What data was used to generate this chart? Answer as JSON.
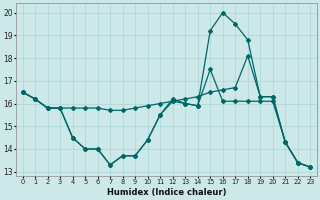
{
  "xlabel": "Humidex (Indice chaleur)",
  "background_color": "#cce8e8",
  "line_color": "#006666",
  "grid_color": "#aad4d4",
  "xlim": [
    -0.5,
    23.5
  ],
  "ylim": [
    12.8,
    20.4
  ],
  "yticks": [
    13,
    14,
    15,
    16,
    17,
    18,
    19,
    20
  ],
  "xticks": [
    0,
    1,
    2,
    3,
    4,
    5,
    6,
    7,
    8,
    9,
    10,
    11,
    12,
    13,
    14,
    15,
    16,
    17,
    18,
    19,
    20,
    21,
    22,
    23
  ],
  "series1_x": [
    0,
    1,
    2,
    3,
    4,
    5,
    6,
    7,
    8,
    9,
    10,
    11,
    12,
    13,
    14,
    15,
    16,
    17,
    18,
    19,
    20,
    21,
    22,
    23
  ],
  "series1_y": [
    16.5,
    16.2,
    15.8,
    15.8,
    14.5,
    14.0,
    14.0,
    13.3,
    13.7,
    13.7,
    14.4,
    15.5,
    16.2,
    16.0,
    15.9,
    19.2,
    20.0,
    19.5,
    18.8,
    16.3,
    16.3,
    14.3,
    13.4,
    13.2
  ],
  "series2_x": [
    0,
    1,
    2,
    3,
    4,
    5,
    6,
    7,
    8,
    9,
    10,
    11,
    12,
    13,
    14,
    15,
    16,
    17,
    18,
    19,
    20,
    21,
    22,
    23
  ],
  "series2_y": [
    16.5,
    16.2,
    15.8,
    15.8,
    15.8,
    15.8,
    15.8,
    15.7,
    15.7,
    15.8,
    15.9,
    16.0,
    16.1,
    16.2,
    16.3,
    16.5,
    16.6,
    16.7,
    18.1,
    16.3,
    16.3,
    14.3,
    13.4,
    13.2
  ],
  "series3_x": [
    0,
    1,
    2,
    3,
    4,
    5,
    6,
    7,
    8,
    9,
    10,
    11,
    12,
    13,
    14,
    15,
    16,
    17,
    18,
    19,
    20,
    21,
    22,
    23
  ],
  "series3_y": [
    16.5,
    16.2,
    15.8,
    15.8,
    14.5,
    14.0,
    14.0,
    13.3,
    13.7,
    13.7,
    14.4,
    15.5,
    16.1,
    16.0,
    15.9,
    17.5,
    16.1,
    16.1,
    16.1,
    16.1,
    16.1,
    14.3,
    13.4,
    13.2
  ]
}
